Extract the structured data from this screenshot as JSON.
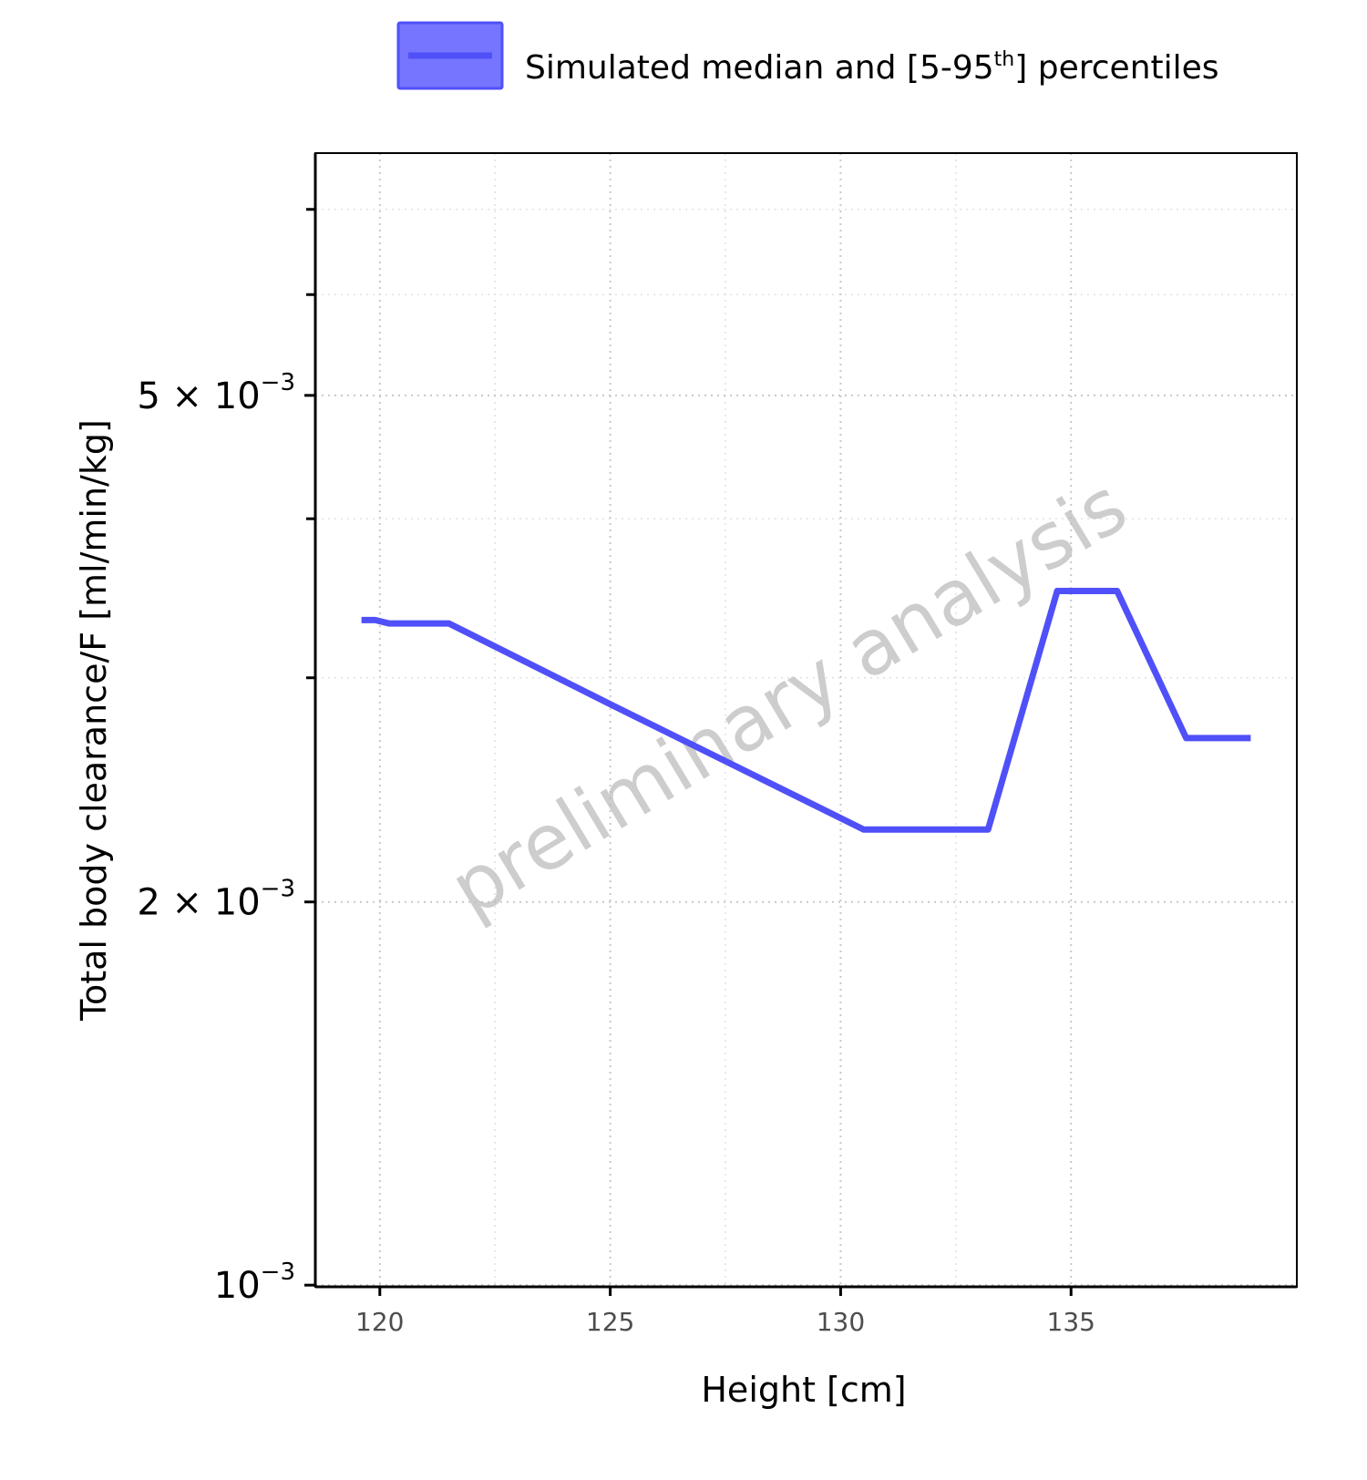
{
  "chart_data": {
    "type": "line",
    "xlabel": "Height [cm]",
    "ylabel": "Total body clearance/F [ml/min/kg]",
    "y_scale": "log",
    "xlim": [
      118.6,
      139.9
    ],
    "ylim": [
      0.000997,
      0.00775
    ],
    "x_ticks": [
      120,
      125,
      130,
      135
    ],
    "y_ticks": [
      {
        "value": 0.005,
        "mantissa": "5",
        "base": "10",
        "exp": "−3"
      },
      {
        "value": 0.002,
        "mantissa": "2",
        "base": "10",
        "exp": "−3"
      },
      {
        "value": 0.001,
        "mantissa": "",
        "base": "10",
        "exp": "−3"
      }
    ],
    "y_minor_ticks": [
      0.006,
      0.007,
      0.003,
      0.004
    ],
    "grid": true,
    "legend_position": "top",
    "legend": {
      "label_main": "Simulated median and [5-95",
      "label_sup": "th",
      "label_end": "] percentiles"
    },
    "watermark": "preliminary analysis",
    "series": [
      {
        "name": "Simulated median and [5-95th] percentiles",
        "color": "#5050f8",
        "fill_color": "#7575ff",
        "x": [
          119.6,
          119.9,
          120.2,
          121.5,
          125.0,
          130.5,
          133.2,
          134.7,
          136.0,
          137.5,
          138.9
        ],
        "y": [
          0.00333,
          0.00333,
          0.00331,
          0.00331,
          0.00286,
          0.00228,
          0.00228,
          0.00351,
          0.00351,
          0.00269,
          0.00269
        ]
      }
    ]
  }
}
